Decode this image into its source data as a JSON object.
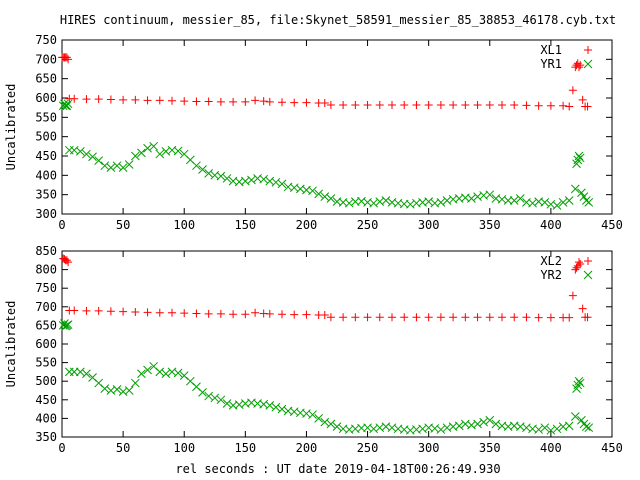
{
  "title": "HIRES continuum, messier_85, file:Skynet_58591_messier_85_38853_46178.cyb.txt",
  "xlabel": "rel seconds : UT date 2019-04-18T00:26:49.930",
  "colors": {
    "xl": "#ff0000",
    "yr": "#00a000"
  },
  "chart_data": [
    {
      "type": "scatter",
      "ylabel": "Uncalibrated",
      "xlim": [
        0,
        450
      ],
      "ylim": [
        300,
        750
      ],
      "xticks": [
        0,
        50,
        100,
        150,
        200,
        250,
        300,
        350,
        400,
        450
      ],
      "yticks": [
        300,
        350,
        400,
        450,
        500,
        550,
        600,
        650,
        700,
        750
      ],
      "grid": false,
      "legend_position": "top-right",
      "series": [
        {
          "name": "XL1",
          "marker": "+",
          "color": "#ff0000",
          "x": [
            0,
            1,
            2,
            3,
            4,
            5,
            6,
            10,
            20,
            30,
            40,
            50,
            60,
            70,
            80,
            90,
            100,
            110,
            120,
            130,
            140,
            150,
            158,
            165,
            170,
            180,
            190,
            200,
            210,
            215,
            220,
            230,
            240,
            250,
            260,
            270,
            280,
            290,
            300,
            310,
            320,
            330,
            340,
            350,
            360,
            370,
            380,
            390,
            400,
            410,
            415,
            418,
            420,
            421,
            422,
            423,
            424,
            426,
            428,
            430
          ],
          "y": [
            705,
            705,
            705,
            705,
            705,
            700,
            598,
            598,
            597,
            597,
            596,
            595,
            595,
            594,
            594,
            593,
            592,
            591,
            591,
            590,
            590,
            590,
            594,
            592,
            590,
            589,
            588,
            588,
            587,
            587,
            582,
            582,
            582,
            582,
            582,
            582,
            582,
            582,
            582,
            582,
            582,
            582,
            582,
            582,
            582,
            582,
            581,
            580,
            580,
            580,
            578,
            620,
            680,
            685,
            690,
            680,
            685,
            595,
            578,
            578
          ]
        },
        {
          "name": "YR1",
          "marker": "x",
          "color": "#00a000",
          "x": [
            1,
            2,
            3,
            4,
            5,
            6,
            10,
            15,
            20,
            25,
            30,
            35,
            40,
            45,
            50,
            55,
            60,
            65,
            70,
            75,
            80,
            85,
            90,
            95,
            100,
            105,
            110,
            115,
            120,
            125,
            130,
            135,
            140,
            145,
            150,
            155,
            160,
            165,
            170,
            175,
            180,
            185,
            190,
            195,
            200,
            205,
            210,
            215,
            220,
            225,
            230,
            235,
            240,
            245,
            250,
            255,
            260,
            265,
            270,
            275,
            280,
            285,
            290,
            295,
            300,
            305,
            310,
            315,
            320,
            325,
            330,
            335,
            340,
            345,
            350,
            355,
            360,
            365,
            370,
            375,
            380,
            385,
            390,
            395,
            400,
            405,
            410,
            415,
            420,
            421,
            422,
            423,
            424,
            425,
            427,
            429,
            431
          ],
          "y": [
            580,
            585,
            580,
            580,
            585,
            465,
            465,
            462,
            455,
            448,
            438,
            425,
            420,
            425,
            420,
            428,
            450,
            458,
            470,
            475,
            455,
            462,
            465,
            463,
            455,
            440,
            425,
            415,
            405,
            400,
            398,
            392,
            385,
            383,
            385,
            388,
            392,
            390,
            385,
            382,
            378,
            370,
            368,
            365,
            362,
            360,
            352,
            345,
            340,
            332,
            330,
            328,
            332,
            333,
            330,
            328,
            332,
            335,
            330,
            328,
            326,
            325,
            328,
            330,
            332,
            328,
            330,
            335,
            338,
            340,
            342,
            340,
            345,
            348,
            350,
            340,
            338,
            335,
            335,
            340,
            330,
            328,
            332,
            330,
            325,
            322,
            330,
            335,
            365,
            430,
            440,
            450,
            445,
            355,
            345,
            335,
            330
          ]
        }
      ]
    },
    {
      "type": "scatter",
      "ylabel": "Uncalibrated",
      "xlim": [
        0,
        450
      ],
      "ylim": [
        350,
        850
      ],
      "xticks": [
        0,
        50,
        100,
        150,
        200,
        250,
        300,
        350,
        400,
        450
      ],
      "yticks": [
        350,
        400,
        450,
        500,
        550,
        600,
        650,
        700,
        750,
        800,
        850
      ],
      "grid": false,
      "legend_position": "top-right",
      "series": [
        {
          "name": "XL2",
          "marker": "+",
          "color": "#ff0000",
          "x": [
            1,
            2,
            3,
            4,
            5,
            6,
            10,
            20,
            30,
            40,
            50,
            60,
            70,
            80,
            90,
            100,
            110,
            120,
            130,
            140,
            150,
            158,
            165,
            170,
            180,
            190,
            200,
            210,
            215,
            220,
            230,
            240,
            250,
            260,
            270,
            280,
            290,
            300,
            310,
            320,
            330,
            340,
            350,
            360,
            370,
            380,
            390,
            400,
            410,
            415,
            418,
            420,
            421,
            422,
            423,
            424,
            426,
            428,
            430
          ],
          "y": [
            830,
            828,
            825,
            825,
            820,
            690,
            690,
            689,
            689,
            688,
            687,
            686,
            685,
            684,
            684,
            683,
            682,
            681,
            681,
            680,
            680,
            684,
            682,
            681,
            680,
            679,
            679,
            678,
            678,
            672,
            672,
            672,
            672,
            672,
            672,
            672,
            672,
            672,
            672,
            672,
            672,
            672,
            672,
            672,
            672,
            672,
            671,
            671,
            671,
            671,
            730,
            800,
            805,
            810,
            820,
            815,
            695,
            672,
            672
          ]
        },
        {
          "name": "YR2",
          "marker": "x",
          "color": "#00a000",
          "x": [
            1,
            2,
            3,
            4,
            5,
            6,
            10,
            15,
            20,
            25,
            30,
            35,
            40,
            45,
            50,
            55,
            60,
            65,
            70,
            75,
            80,
            85,
            90,
            95,
            100,
            105,
            110,
            115,
            120,
            125,
            130,
            135,
            140,
            145,
            150,
            155,
            160,
            165,
            170,
            175,
            180,
            185,
            190,
            195,
            200,
            205,
            210,
            215,
            220,
            225,
            230,
            235,
            240,
            245,
            250,
            255,
            260,
            265,
            270,
            275,
            280,
            285,
            290,
            295,
            300,
            305,
            310,
            315,
            320,
            325,
            330,
            335,
            340,
            345,
            350,
            355,
            360,
            365,
            370,
            375,
            380,
            385,
            390,
            395,
            400,
            405,
            410,
            415,
            420,
            421,
            422,
            423,
            424,
            425,
            427,
            429,
            431
          ],
          "y": [
            650,
            655,
            648,
            650,
            652,
            525,
            525,
            525,
            520,
            510,
            495,
            480,
            475,
            478,
            472,
            475,
            495,
            520,
            530,
            540,
            525,
            520,
            525,
            522,
            515,
            500,
            485,
            470,
            460,
            455,
            450,
            440,
            435,
            437,
            440,
            442,
            440,
            438,
            435,
            430,
            425,
            420,
            418,
            415,
            413,
            410,
            400,
            390,
            385,
            378,
            372,
            370,
            372,
            374,
            375,
            372,
            375,
            378,
            375,
            372,
            370,
            368,
            370,
            372,
            375,
            373,
            370,
            375,
            378,
            380,
            385,
            382,
            385,
            390,
            395,
            385,
            380,
            378,
            380,
            378,
            375,
            372,
            370,
            375,
            368,
            372,
            378,
            380,
            405,
            480,
            490,
            500,
            495,
            395,
            385,
            378,
            375
          ]
        }
      ]
    }
  ]
}
